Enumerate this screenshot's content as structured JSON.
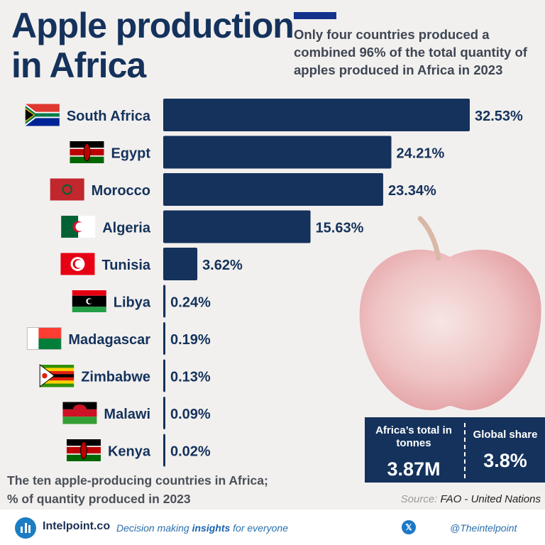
{
  "header": {
    "title_line1": "Apple production",
    "title_line2": "in Africa",
    "subtitle": "Only four countries produced a combined 96% of the total quantity of apples produced in Africa in 2023"
  },
  "chart_data": {
    "type": "bar",
    "orientation": "horizontal",
    "categories": [
      "South Africa",
      "Egypt",
      "Morocco",
      "Algeria",
      "Tunisia",
      "Libya",
      "Madagascar",
      "Zimbabwe",
      "Malawi",
      "Kenya"
    ],
    "values": [
      32.53,
      24.21,
      23.34,
      15.63,
      3.62,
      0.24,
      0.19,
      0.13,
      0.09,
      0.02
    ],
    "value_labels": [
      "32.53%",
      "24.21%",
      "23.34%",
      "15.63%",
      "3.62%",
      "0.24%",
      "0.19%",
      "0.13%",
      "0.09%",
      "0.02%"
    ],
    "xlim": [
      0,
      32.53
    ],
    "bar_color": "#14325c"
  },
  "flags": [
    "south-africa-flag-icon",
    "egypt-flag-icon",
    "morocco-flag-icon",
    "algeria-flag-icon",
    "tunisia-flag-icon",
    "libya-flag-icon",
    "madagascar-flag-icon",
    "zimbabwe-flag-icon",
    "malawi-flag-icon",
    "kenya-flag-icon"
  ],
  "stats": {
    "total_label": "Africa’s total in tonnes",
    "total_value": "3.87M",
    "share_label": "Global share",
    "share_value": "3.8%"
  },
  "caption": {
    "line1": "The ten apple-producing countries in Africa;",
    "line2": "% of quantity produced in 2023"
  },
  "source": {
    "label": "Source:",
    "value": "FAO - United Nations"
  },
  "footer": {
    "brand": "Intelpoint.co",
    "tagline_pre": "Decision making ",
    "tagline_bold": "insights",
    "tagline_post": " for everyone",
    "handle": "@Theintelpoint"
  }
}
